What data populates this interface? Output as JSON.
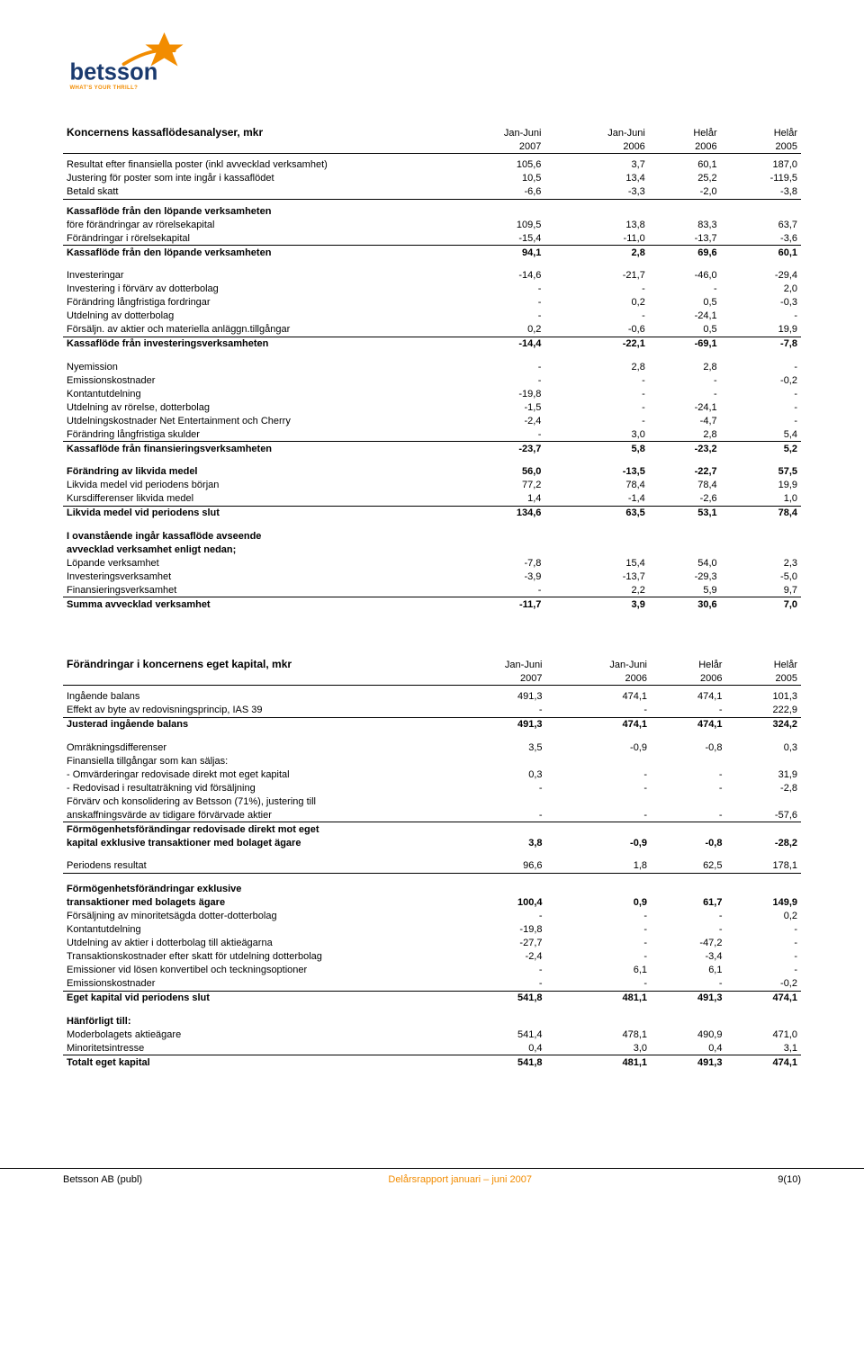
{
  "logo": {
    "brand_color_orange": "#f28c00",
    "brand_color_blue": "#1a3a6e",
    "text": "betsson",
    "tagline": "WHAT'S YOUR THRILL?"
  },
  "table1": {
    "title": "Koncernens kassaflödesanalyser, mkr",
    "head1": [
      "Jan-Juni",
      "Jan-Juni",
      "Helår",
      "Helår"
    ],
    "head2": [
      "2007",
      "2006",
      "2006",
      "2005"
    ],
    "sections": [
      {
        "rows": [
          [
            "Resultat efter finansiella poster (inkl avvecklad verksamhet)",
            "105,6",
            "3,7",
            "60,1",
            "187,0"
          ],
          [
            "Justering för poster som inte ingår i kassaflödet",
            "10,5",
            "13,4",
            "25,2",
            "-119,5"
          ],
          [
            "Betald skatt",
            "-6,6",
            "-3,3",
            "-2,0",
            "-3,8"
          ]
        ],
        "under": true
      },
      {
        "bold_first": [
          "Kassaflöde från den löpande verksamheten",
          "",
          "",
          "",
          ""
        ],
        "rows": [
          [
            "före förändringar av rörelsekapital",
            "109,5",
            "13,8",
            "83,3",
            "63,7"
          ],
          [
            "Förändringar i rörelsekapital",
            "-15,4",
            "-11,0",
            "-13,7",
            "-3,6"
          ]
        ],
        "bold_first_is_bold": true,
        "under": true,
        "sum": [
          "Kassaflöde från den löpande verksamheten",
          "94,1",
          "2,8",
          "69,6",
          "60,1"
        ]
      },
      {
        "rows": [
          [
            "Investeringar",
            "-14,6",
            "-21,7",
            "-46,0",
            "-29,4"
          ],
          [
            "Investering i förvärv av dotterbolag",
            "-",
            "-",
            "-",
            "2,0"
          ],
          [
            "Förändring långfristiga fordringar",
            "-",
            "0,2",
            "0,5",
            "-0,3"
          ],
          [
            "Utdelning av dotterbolag",
            "-",
            "-",
            "-24,1",
            "-"
          ],
          [
            "Försäljn. av aktier och materiella anläggn.tillgångar",
            "0,2",
            "-0,6",
            "0,5",
            "19,9"
          ]
        ],
        "under": true,
        "sum": [
          "Kassaflöde från investeringsverksamheten",
          "-14,4",
          "-22,1",
          "-69,1",
          "-7,8"
        ]
      },
      {
        "rows": [
          [
            "Nyemission",
            "-",
            "2,8",
            "2,8",
            "-"
          ],
          [
            "Emissionskostnader",
            "-",
            "-",
            "-",
            "-0,2"
          ],
          [
            "Kontantutdelning",
            "-19,8",
            "-",
            "-",
            "-"
          ],
          [
            "Utdelning av rörelse, dotterbolag",
            "-1,5",
            "-",
            "-24,1",
            "-"
          ],
          [
            "Utdelningskostnader Net Entertainment och Cherry",
            "-2,4",
            "-",
            "-4,7",
            "-"
          ],
          [
            "Förändring långfristiga skulder",
            "-",
            "3,0",
            "2,8",
            "5,4"
          ]
        ],
        "under": true,
        "sum": [
          "Kassaflöde från finansieringsverksamheten",
          "-23,7",
          "5,8",
          "-23,2",
          "5,2"
        ]
      },
      {
        "bold_rows": [
          [
            "Förändring av likvida medel",
            "56,0",
            "-13,5",
            "-22,7",
            "57,5"
          ]
        ],
        "rows": [
          [
            "Likvida medel vid periodens början",
            "77,2",
            "78,4",
            "78,4",
            "19,9"
          ],
          [
            "Kursdifferenser likvida medel",
            "1,4",
            "-1,4",
            "-2,6",
            "1,0"
          ]
        ],
        "under": true,
        "sum": [
          "Likvida medel vid periodens slut",
          "134,6",
          "63,5",
          "53,1",
          "78,4"
        ]
      },
      {
        "bold_rows": [
          [
            "I ovanstående ingår kassaflöde avseende",
            "",
            "",
            "",
            ""
          ],
          [
            "avvecklad verksamhet enligt nedan;",
            "",
            "",
            "",
            ""
          ]
        ],
        "rows": [
          [
            "Löpande verksamhet",
            "-7,8",
            "15,4",
            "54,0",
            "2,3"
          ],
          [
            "Investeringsverksamhet",
            "-3,9",
            "-13,7",
            "-29,3",
            "-5,0"
          ],
          [
            "Finansieringsverksamhet",
            "-",
            "2,2",
            "5,9",
            "9,7"
          ]
        ],
        "under": true,
        "sum_plain": [
          "Summa avvecklad verksamhet",
          "-11,7",
          "3,9",
          "30,6",
          "7,0"
        ]
      }
    ]
  },
  "table2": {
    "title": "Förändringar i koncernens eget kapital, mkr",
    "head1": [
      "Jan-Juni",
      "Jan-Juni",
      "Helår",
      "Helår"
    ],
    "head2": [
      "2007",
      "2006",
      "2006",
      "2005"
    ],
    "sections": [
      {
        "rows": [
          [
            "Ingående balans",
            "491,3",
            "474,1",
            "474,1",
            "101,3"
          ],
          [
            "Effekt av byte av redovisningsprincip, IAS 39",
            "-",
            "-",
            "-",
            "222,9"
          ]
        ],
        "under": true,
        "sum": [
          "Justerad ingående balans",
          "491,3",
          "474,1",
          "474,1",
          "324,2"
        ]
      },
      {
        "rows": [
          [
            "Omräkningsdifferenser",
            "3,5",
            "-0,9",
            "-0,8",
            "0,3"
          ],
          [
            "Finansiella tillgångar som kan säljas:",
            "",
            "",
            "",
            ""
          ],
          [
            " - Omvärderingar redovisade direkt mot eget kapital",
            "0,3",
            "-",
            "-",
            "31,9"
          ],
          [
            " - Redovisad i resultaträkning vid försäljning",
            "-",
            "-",
            "-",
            "-2,8"
          ],
          [
            "Förvärv och konsolidering av Betsson (71%), justering till",
            "",
            "",
            "",
            ""
          ],
          [
            "anskaffningsvärde av tidigare förvärvade aktier",
            "-",
            "-",
            "-",
            "-57,6"
          ]
        ],
        "under": true,
        "sum_multi": [
          [
            "Förmögenhetsförändingar redovisade direkt mot eget",
            "",
            "",
            "",
            ""
          ],
          [
            "kapital exklusive transaktioner med bolaget ägare",
            "3,8",
            "-0,9",
            "-0,8",
            "-28,2"
          ]
        ]
      },
      {
        "rows": [
          [
            "Periodens resultat",
            "96,6",
            "1,8",
            "62,5",
            "178,1"
          ]
        ],
        "under": true
      },
      {
        "bold_rows": [
          [
            "Förmögenhetsförändringar exklusive",
            "",
            "",
            "",
            ""
          ],
          [
            "transaktioner med bolagets ägare",
            "100,4",
            "0,9",
            "61,7",
            "149,9"
          ]
        ],
        "rows": [
          [
            "Försäljning av minoritetsägda dotter-dotterbolag",
            "-",
            "-",
            "-",
            "0,2"
          ],
          [
            "Kontantutdelning",
            "-19,8",
            "-",
            "-",
            "-"
          ],
          [
            "Utdelning av aktier i dotterbolag till aktieägarna",
            "-27,7",
            "-",
            "-47,2",
            "-"
          ],
          [
            "Transaktionskostnader efter skatt för utdelning dotterbolag",
            "-2,4",
            "-",
            "-3,4",
            "-"
          ],
          [
            "Emissioner vid lösen konvertibel och teckningsoptioner",
            "-",
            "6,1",
            "6,1",
            "-"
          ],
          [
            "Emissionskostnader",
            "-",
            "-",
            "-",
            "-0,2"
          ]
        ],
        "under": true,
        "sum": [
          "Eget kapital vid periodens slut",
          "541,8",
          "481,1",
          "491,3",
          "474,1"
        ]
      },
      {
        "bold_rows": [
          [
            "Hänförligt till:",
            "",
            "",
            "",
            ""
          ]
        ],
        "rows": [
          [
            "Moderbolagets aktieägare",
            "541,4",
            "478,1",
            "490,9",
            "471,0"
          ],
          [
            "Minoritetsintresse",
            "0,4",
            "3,0",
            "0,4",
            "3,1"
          ]
        ],
        "under": true,
        "sum_plain": [
          "Totalt eget kapital",
          "541,8",
          "481,1",
          "491,3",
          "474,1"
        ]
      }
    ]
  },
  "footer": {
    "left": "Betsson AB (publ)",
    "mid": "Delårsrapport januari – juni 2007",
    "right": "9(10)"
  }
}
